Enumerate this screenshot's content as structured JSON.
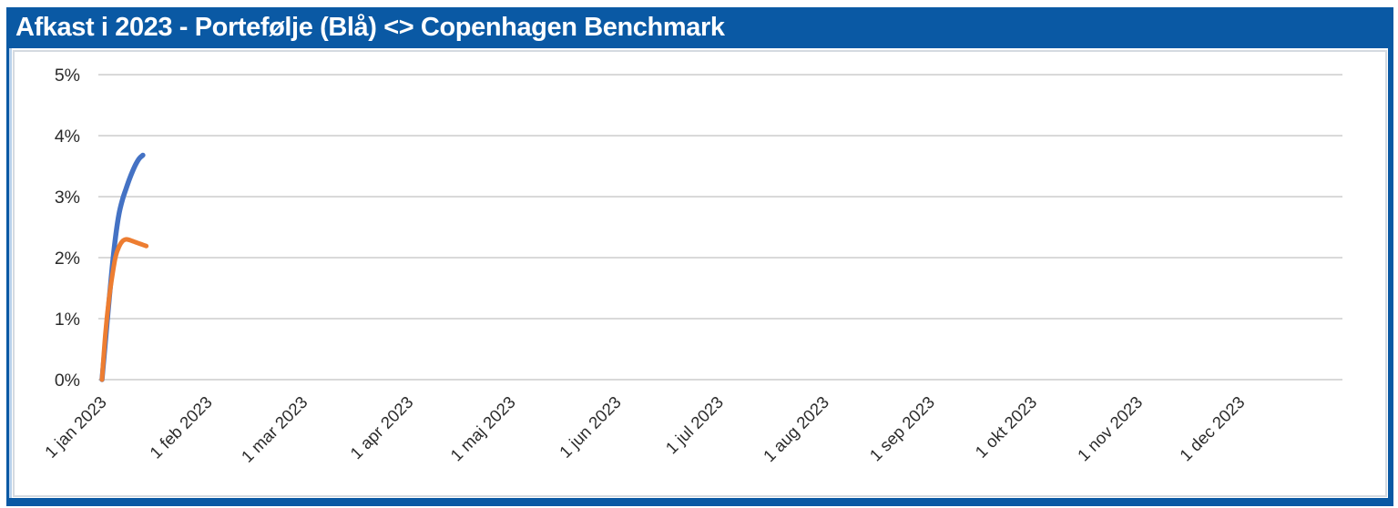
{
  "window": {
    "title": "Afkast i 2023 - Portefølje (Blå) <> Copenhagen Benchmark"
  },
  "colors": {
    "frame_blue": "#0A59A4",
    "frame_blue_light": "#B9D2EC",
    "title_text": "#FFFFFF",
    "card_border": "#D5DAE0",
    "gridline": "#D9D9D9",
    "axis_text": "#2B2B2B",
    "portfolio_line": "#4472C4",
    "benchmark_line": "#ED7D31"
  },
  "chart_data": {
    "type": "line",
    "title": "Afkast i 2023 - Portefølje (Blå) <> Copenhagen Benchmark",
    "xlabel": "",
    "ylabel": "",
    "ylim": [
      0,
      5
    ],
    "y_unit": "%",
    "y_ticks": [
      0,
      1,
      2,
      3,
      4,
      5
    ],
    "y_tick_labels": [
      "0%",
      "1%",
      "2%",
      "3%",
      "4%",
      "5%"
    ],
    "x_tick_labels": [
      "1 jan 2023",
      "1 feb 2023",
      "1 mar 2023",
      "1 apr 2023",
      "1 maj 2023",
      "1 jun 2023",
      "1 jul 2023",
      "1 aug 2023",
      "1 sep 2023",
      "1 okt 2023",
      "1 nov 2023",
      "1 dec 2023"
    ],
    "x_tick_day_offsets": [
      0,
      31,
      59,
      90,
      120,
      151,
      181,
      212,
      243,
      273,
      304,
      334
    ],
    "x_range_days": 364,
    "x_tick_rotation_deg": -45,
    "grid": true,
    "legend": "none",
    "series": [
      {
        "name": "Portefølje",
        "color": "#4472C4",
        "x_days": [
          0,
          1,
          2,
          3,
          4,
          5,
          6,
          7,
          8,
          9,
          10,
          11,
          12
        ],
        "values": [
          0,
          0.62,
          1.25,
          1.85,
          2.35,
          2.72,
          2.95,
          3.12,
          3.28,
          3.42,
          3.54,
          3.63,
          3.68
        ]
      },
      {
        "name": "Copenhagen Benchmark",
        "color": "#ED7D31",
        "x_days": [
          0,
          1,
          2,
          3,
          4,
          5,
          6,
          7,
          8,
          9,
          10,
          11,
          12,
          13
        ],
        "values": [
          0,
          0.75,
          1.3,
          1.7,
          2.02,
          2.18,
          2.27,
          2.3,
          2.29,
          2.27,
          2.25,
          2.23,
          2.21,
          2.19
        ]
      }
    ]
  }
}
